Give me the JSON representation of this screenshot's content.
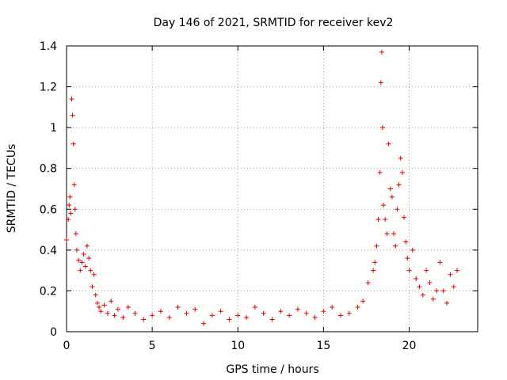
{
  "chart_data": {
    "type": "scatter",
    "title": "Day 146 of 2021, SRMTID for receiver kev2",
    "xlabel": "GPS time / hours",
    "ylabel": "SRMTID / TECUs",
    "xlim": [
      0,
      24
    ],
    "ylim": [
      0,
      1.4
    ],
    "x_ticks": [
      0,
      5,
      10,
      15,
      20
    ],
    "x_tick_labels": [
      "0",
      "5",
      "10",
      "15",
      "20"
    ],
    "y_ticks": [
      0,
      0.2,
      0.4,
      0.6,
      0.8,
      1.0,
      1.2,
      1.4
    ],
    "y_tick_labels": [
      "0",
      "0.2",
      "0.4",
      "0.6",
      "0.8",
      "1",
      "1.2",
      "1.4"
    ],
    "grid": true,
    "marker": "+",
    "series": [
      {
        "name": "SRMTID",
        "color": "#e00000",
        "x": [
          0.0,
          0.1,
          0.15,
          0.2,
          0.25,
          0.3,
          0.35,
          0.4,
          0.45,
          0.5,
          0.55,
          0.6,
          0.7,
          0.8,
          0.9,
          1.0,
          1.1,
          1.2,
          1.3,
          1.4,
          1.5,
          1.6,
          1.7,
          1.8,
          1.9,
          2.0,
          2.2,
          2.4,
          2.6,
          2.8,
          3.0,
          3.3,
          3.6,
          4.0,
          4.5,
          5.0,
          5.5,
          6.0,
          6.5,
          7.0,
          7.5,
          8.0,
          8.5,
          9.0,
          9.5,
          10.0,
          10.5,
          11.0,
          11.5,
          12.0,
          12.5,
          13.0,
          13.5,
          14.0,
          14.5,
          15.0,
          15.5,
          16.0,
          16.5,
          17.0,
          17.3,
          17.6,
          17.9,
          18.0,
          18.1,
          18.2,
          18.3,
          18.35,
          18.4,
          18.45,
          18.5,
          18.6,
          18.7,
          18.8,
          18.9,
          19.0,
          19.1,
          19.2,
          19.3,
          19.4,
          19.5,
          19.6,
          19.7,
          19.8,
          19.9,
          20.0,
          20.2,
          20.4,
          20.6,
          20.8,
          21.0,
          21.2,
          21.4,
          21.6,
          21.8,
          22.0,
          22.2,
          22.4,
          22.6,
          22.8
        ],
        "y": [
          0.45,
          0.55,
          0.62,
          0.66,
          0.58,
          1.14,
          1.06,
          0.92,
          0.72,
          0.6,
          0.48,
          0.4,
          0.35,
          0.3,
          0.34,
          0.38,
          0.32,
          0.42,
          0.36,
          0.3,
          0.22,
          0.28,
          0.18,
          0.14,
          0.12,
          0.1,
          0.13,
          0.09,
          0.15,
          0.08,
          0.11,
          0.07,
          0.12,
          0.09,
          0.06,
          0.08,
          0.1,
          0.07,
          0.12,
          0.09,
          0.11,
          0.04,
          0.08,
          0.1,
          0.06,
          0.08,
          0.07,
          0.12,
          0.09,
          0.06,
          0.1,
          0.08,
          0.11,
          0.09,
          0.07,
          0.1,
          0.12,
          0.08,
          0.09,
          0.12,
          0.15,
          0.24,
          0.3,
          0.34,
          0.42,
          0.55,
          0.78,
          1.22,
          1.37,
          1.0,
          0.62,
          0.55,
          0.48,
          0.92,
          0.7,
          0.66,
          0.48,
          0.42,
          0.6,
          0.72,
          0.85,
          0.78,
          0.56,
          0.44,
          0.36,
          0.3,
          0.4,
          0.26,
          0.22,
          0.18,
          0.3,
          0.24,
          0.16,
          0.2,
          0.34,
          0.2,
          0.14,
          0.28,
          0.22,
          0.3
        ]
      }
    ]
  }
}
